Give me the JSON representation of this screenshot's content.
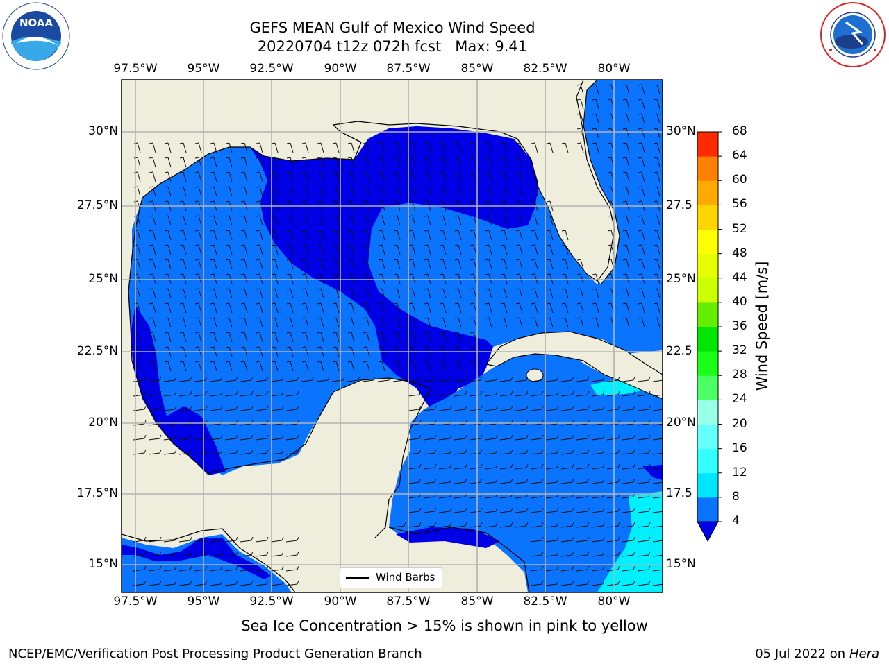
{
  "title_line1": "GEFS MEAN Gulf of Mexico Wind Speed",
  "title_line2": "20220704 t12z 072h fcst   Max: 9.41",
  "lon_ticks": [
    "97.5°W",
    "95°W",
    "92.5°W",
    "90°W",
    "87.5°W",
    "85°W",
    "82.5°W",
    "80°W"
  ],
  "lat_ticks_left": [
    "30°N",
    "27.5°N",
    "25°N",
    "22.5°N",
    "20°N",
    "17.5°N",
    "15°N"
  ],
  "lat_ticks_right": [
    "30°N",
    "27.5",
    "25°N",
    "22.5",
    "20°N",
    "17.5",
    "15°N"
  ],
  "legend_label": "Wind Barbs",
  "colorbar": {
    "label": "Wind Speed [m/s]",
    "ticks": [
      "68",
      "64",
      "60",
      "56",
      "52",
      "48",
      "44",
      "40",
      "36",
      "32",
      "28",
      "24",
      "20",
      "16",
      "12",
      "8",
      "4"
    ],
    "colors": [
      "#0000e6",
      "#0a74ff",
      "#00e6ff",
      "#33ffff",
      "#66ffff",
      "#99ffe6",
      "#4dff66",
      "#1aff1a",
      "#00e600",
      "#66ee00",
      "#ccff00",
      "#e6ff00",
      "#ffff00",
      "#ffee00",
      "#ffd500",
      "#ffaa00",
      "#ff8000",
      "#ff5500",
      "#ff2a00",
      "#ff0000"
    ],
    "extend": "min"
  },
  "note": "Sea Ice Concentration > 15% is shown in pink to yellow",
  "footer_left": "NCEP/EMC/Verification Post Processing Product Generation Branch",
  "footer_right_date": "05 Jul 2022 on ",
  "footer_right_host": "Hera",
  "logos": {
    "noaa": "NOAA",
    "nws": "NATIONAL WEATHER SERVICE"
  },
  "colors": {
    "land": "#efeedd",
    "water_4_8": "#0a74ff",
    "water_lt4": "#0000e6",
    "water_8_12": "#00f0ff",
    "grid": "#b3b3b3"
  },
  "chart_data": {
    "type": "heatmap",
    "title": "GEFS MEAN Gulf of Mexico Wind Speed",
    "subtitle": "20220704 t12z 072h fcst   Max: 9.41",
    "xlim": [
      "98.5°W",
      "78.75°W"
    ],
    "ylim": [
      "14°N",
      "31.7°N"
    ],
    "x_ticks": [
      "97.5°W",
      "95°W",
      "92.5°W",
      "90°W",
      "87.5°W",
      "85°W",
      "82.5°W",
      "80°W"
    ],
    "y_ticks": [
      "15°N",
      "17.5°N",
      "20°N",
      "22.5°N",
      "25°N",
      "27.5°N",
      "30°N"
    ],
    "colorbar_range": [
      4,
      68
    ],
    "colorbar_step": 4,
    "max_value": 9.41,
    "grid": true,
    "legend": "bottom-center",
    "regions": [
      {
        "area": "northern Gulf / west of Florida",
        "speed_range": "< 4"
      },
      {
        "area": "central and western Gulf",
        "speed_range": "4-8"
      },
      {
        "area": "Caribbean",
        "speed_range": "4-8"
      },
      {
        "area": "south of Cuba / southeastern Caribbean",
        "speed_range": "8-12"
      }
    ]
  }
}
